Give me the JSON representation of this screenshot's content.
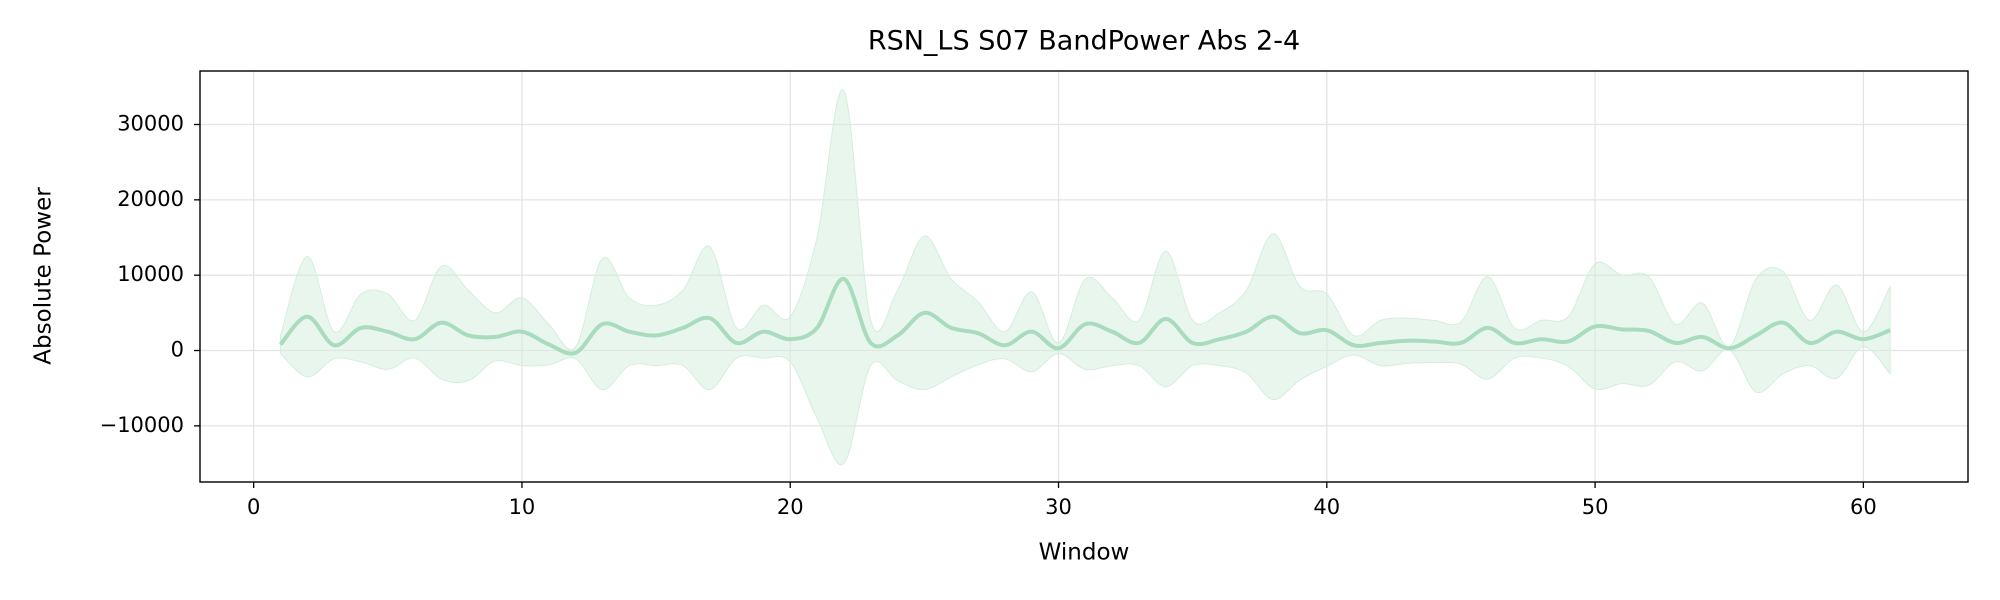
{
  "chart_data": {
    "type": "line",
    "title": "RSN_LS S07 BandPower Abs 2-4",
    "xlabel": "Window",
    "ylabel": "Absolute Power",
    "x": [
      1,
      2,
      3,
      4,
      5,
      6,
      7,
      8,
      9,
      10,
      11,
      12,
      13,
      14,
      15,
      16,
      17,
      18,
      19,
      20,
      21,
      22,
      23,
      24,
      25,
      26,
      27,
      28,
      29,
      30,
      31,
      32,
      33,
      34,
      35,
      36,
      37,
      38,
      39,
      40,
      41,
      42,
      43,
      44,
      45,
      46,
      47,
      48,
      49,
      50,
      51,
      52,
      53,
      54,
      55,
      56,
      57,
      58,
      59,
      60,
      61
    ],
    "values": [
      800,
      4500,
      700,
      3000,
      2500,
      1500,
      3700,
      2000,
      1800,
      2500,
      800,
      -300,
      3500,
      2500,
      2000,
      3000,
      4300,
      1000,
      2500,
      1500,
      3000,
      9500,
      1000,
      2000,
      5000,
      3000,
      2300,
      700,
      2500,
      300,
      3500,
      2500,
      1000,
      4200,
      1000,
      1500,
      2500,
      4500,
      2300,
      2700,
      700,
      1000,
      1300,
      1200,
      1000,
      3000,
      1000,
      1500,
      1200,
      3200,
      2800,
      2600,
      1000,
      1800,
      300,
      2000,
      3700,
      1000,
      2500,
      1500,
      2700
    ],
    "band": {
      "upper": [
        2000,
        12500,
        2500,
        7500,
        7500,
        4000,
        11200,
        8000,
        5000,
        7000,
        3500,
        500,
        12200,
        7000,
        6000,
        8000,
        13800,
        3000,
        6000,
        4500,
        15000,
        34500,
        4000,
        8000,
        15200,
        9500,
        6500,
        2500,
        7800,
        1000,
        9500,
        7000,
        4000,
        13200,
        4000,
        5000,
        8000,
        15500,
        8500,
        7500,
        2000,
        4000,
        4300,
        4000,
        3800,
        9800,
        3000,
        4000,
        4500,
        11500,
        10000,
        9800,
        3500,
        6300,
        500,
        9500,
        10500,
        4000,
        8700,
        2500,
        8500
      ],
      "lower": [
        -400,
        -3500,
        -1100,
        -1500,
        -2500,
        -1000,
        -3800,
        -4000,
        -1400,
        -2000,
        -1900,
        -1100,
        -5200,
        -2000,
        -2000,
        -2000,
        -5200,
        -1000,
        -1000,
        -1500,
        -9000,
        -15000,
        -2000,
        -4000,
        -5200,
        -3500,
        -1900,
        -1100,
        -2800,
        -400,
        -2500,
        -2000,
        -2000,
        -4800,
        -2000,
        -2000,
        -3000,
        -6500,
        -3900,
        -2100,
        -600,
        -2000,
        -1700,
        -1600,
        -1800,
        -3800,
        -1000,
        -1000,
        -2100,
        -5100,
        -4400,
        -4600,
        -1500,
        -2700,
        100,
        -5500,
        -3100,
        -2000,
        -3700,
        500,
        -3100
      ]
    },
    "color": "#a8dcbc",
    "band_color": "#d4eedd",
    "xlim": [
      -2,
      63.9
    ],
    "ylim": [
      -17450,
      37100
    ],
    "xticks": [
      0,
      10,
      20,
      30,
      40,
      50,
      60
    ],
    "yticks": [
      {
        "value": -10000,
        "label": "−10000"
      },
      0,
      10000,
      20000,
      30000
    ],
    "grid": true
  }
}
